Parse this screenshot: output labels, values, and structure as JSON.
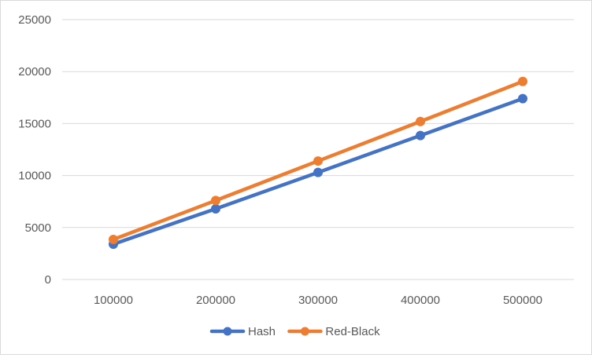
{
  "chart_data": {
    "type": "line",
    "title": "",
    "xlabel": "",
    "ylabel": "",
    "x": [
      100000,
      200000,
      300000,
      400000,
      500000
    ],
    "categories": [
      "100000",
      "200000",
      "300000",
      "400000",
      "500000"
    ],
    "ylim": [
      0,
      25000
    ],
    "yticks": [
      0,
      5000,
      10000,
      15000,
      20000,
      25000
    ],
    "ytick_labels": [
      "0",
      "5000",
      "10000",
      "15000",
      "20000",
      "25000"
    ],
    "grid": true,
    "legend_position": "bottom",
    "series": [
      {
        "name": "Hash",
        "color": "#4472c4",
        "values": [
          3400,
          6800,
          10300,
          13850,
          17400
        ]
      },
      {
        "name": "Red-Black",
        "color": "#ed7d31",
        "values": [
          3850,
          7600,
          11400,
          15200,
          19050
        ]
      }
    ]
  }
}
